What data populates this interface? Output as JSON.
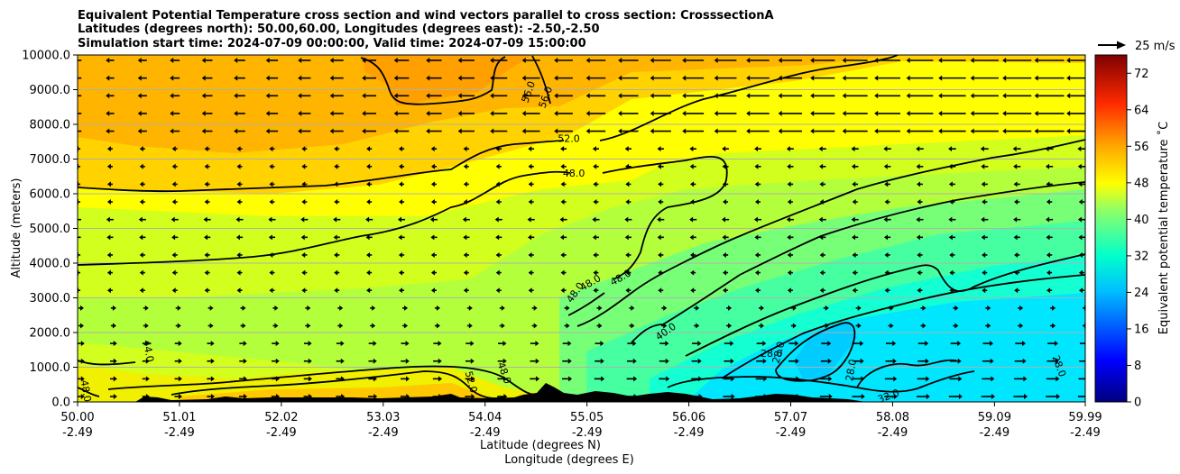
{
  "chart_data": {
    "type": "contour",
    "title_lines": [
      "Equivalent Potential Temperature cross section and wind vectors parallel to cross section: CrosssectionA",
      "Latitudes (degrees north): 50.00,60.00, Longitudes (degrees east): -2.50,-2.50",
      "Simulation start time: 2024-07-09 00:00:00, Valid time: 2024-07-09 15:00:00"
    ],
    "xlabel_line1": "Latitude (degrees N)",
    "xlabel_line2": "Longitude (degrees E)",
    "ylabel": "Altitude (meters)",
    "xlim": [
      50.0,
      59.99
    ],
    "ylim": [
      0,
      10000
    ],
    "grid": "horizontal",
    "x_ticks": [
      {
        "lat": "50.00",
        "lon": "-2.49"
      },
      {
        "lat": "51.01",
        "lon": "-2.49"
      },
      {
        "lat": "52.02",
        "lon": "-2.49"
      },
      {
        "lat": "53.03",
        "lon": "-2.49"
      },
      {
        "lat": "54.04",
        "lon": "-2.49"
      },
      {
        "lat": "55.05",
        "lon": "-2.49"
      },
      {
        "lat": "56.06",
        "lon": "-2.49"
      },
      {
        "lat": "57.07",
        "lon": "-2.49"
      },
      {
        "lat": "58.08",
        "lon": "-2.49"
      },
      {
        "lat": "59.09",
        "lon": "-2.49"
      },
      {
        "lat": "59.99",
        "lon": "-2.49"
      }
    ],
    "y_ticks": [
      "0.0",
      "1000.0",
      "2000.0",
      "3000.0",
      "4000.0",
      "5000.0",
      "6000.0",
      "7000.0",
      "8000.0",
      "9000.0",
      "10000.0"
    ],
    "colorbar": {
      "label": "Equivalent potential temperature ˚C",
      "range": [
        0,
        76
      ],
      "ticks": [
        "0",
        "8",
        "16",
        "24",
        "32",
        "40",
        "48",
        "56",
        "64",
        "72"
      ]
    },
    "quiver_key": "25 m/s",
    "contour_lines": [
      {
        "level": "56.0",
        "label": "56.0"
      },
      {
        "level": "52.0",
        "label": "52.0"
      },
      {
        "level": "48.0",
        "label": "48.0"
      },
      {
        "level": "44.0",
        "label": "44.0"
      },
      {
        "level": "40.0",
        "label": "40.0"
      },
      {
        "level": "32.0",
        "label": "32.0"
      },
      {
        "level": "28.0",
        "label": "28.0"
      }
    ],
    "contour_labels": [
      {
        "text": "56.0",
        "lat": 54.5,
        "alt": 8900,
        "rot": -70
      },
      {
        "text": "56.0",
        "lat": 54.67,
        "alt": 8750,
        "rot": -70
      },
      {
        "text": "52.0",
        "lat": 54.87,
        "alt": 7500,
        "rot": 0
      },
      {
        "text": "48.0",
        "lat": 54.92,
        "alt": 6500,
        "rot": 0
      },
      {
        "text": "48.0",
        "lat": 54.96,
        "alt": 3100,
        "rot": -55
      },
      {
        "text": "48.0",
        "lat": 55.1,
        "alt": 3350,
        "rot": -30
      },
      {
        "text": "48.0",
        "lat": 55.4,
        "alt": 3500,
        "rot": -30
      },
      {
        "text": "44.0",
        "lat": 50.67,
        "alt": 1450,
        "rot": 80
      },
      {
        "text": "48.0",
        "lat": 50.05,
        "alt": 300,
        "rot": 80
      },
      {
        "text": "52.0",
        "lat": 53.87,
        "alt": 550,
        "rot": 75
      },
      {
        "text": "48.0",
        "lat": 54.2,
        "alt": 800,
        "rot": 70
      },
      {
        "text": "40.0",
        "lat": 55.85,
        "alt": 1950,
        "rot": -35
      },
      {
        "text": "28.0",
        "lat": 56.88,
        "alt": 1300,
        "rot": 0
      },
      {
        "text": "28.0",
        "lat": 56.98,
        "alt": 1400,
        "rot": -75
      },
      {
        "text": "28.0",
        "lat": 57.7,
        "alt": 900,
        "rot": -80
      },
      {
        "text": "28.0",
        "lat": 59.7,
        "alt": 1000,
        "rot": 70
      },
      {
        "text": "32.0",
        "lat": 58.05,
        "alt": 80,
        "rot": -20
      }
    ]
  }
}
